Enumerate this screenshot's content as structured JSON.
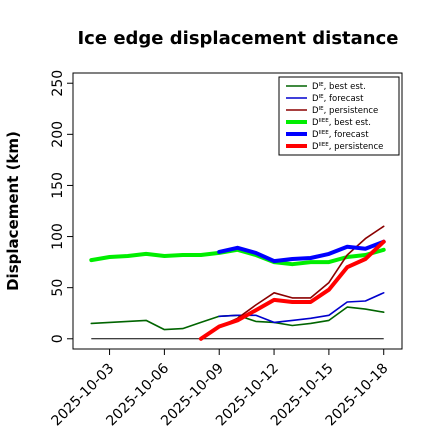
{
  "chart_data": {
    "type": "line",
    "title": "Ice edge displacement distance",
    "xlabel": "",
    "ylabel": "Displacement (km)",
    "xlim": [
      "2025-10-01",
      "2025-10-19"
    ],
    "ylim": [
      -10,
      260
    ],
    "yticks": [
      0,
      50,
      100,
      150,
      200,
      250
    ],
    "xticks": [
      {
        "date": "2025-10-03",
        "label": "2025-10-03",
        "color": "#000000"
      },
      {
        "date": "2025-10-06",
        "label": "2025-10-06",
        "color": "#000000"
      },
      {
        "date": "2025-10-09",
        "label": "2025-10-09",
        "color": "#228B22"
      },
      {
        "date": "2025-10-12",
        "label": "2025-10-12",
        "color": "#000000"
      },
      {
        "date": "2025-10-15",
        "label": "2025-10-15",
        "color": "#000000"
      },
      {
        "date": "2025-10-18",
        "label": "2025-10-18",
        "color": "#000000"
      }
    ],
    "reference_line": {
      "y": 0,
      "from": "2025-10-02",
      "to": "2025-10-18",
      "color": "#000000"
    },
    "legend": {
      "position": "top-right",
      "entries": [
        {
          "sup": "IE",
          "text": "best est.",
          "color": "#006400",
          "thick": false
        },
        {
          "sup": "IE",
          "text": "forecast",
          "color": "#0000CD",
          "thick": false
        },
        {
          "sup": "IE",
          "text": "persistence",
          "color": "#8B0000",
          "thick": false
        },
        {
          "sup": "IIEE",
          "text": "best est.",
          "color": "#00EE00",
          "thick": true
        },
        {
          "sup": "IIEE",
          "text": "forecast",
          "color": "#0000FF",
          "thick": true
        },
        {
          "sup": "IIEE",
          "text": "persistence",
          "color": "#FF0000",
          "thick": true
        }
      ]
    },
    "series": [
      {
        "color": "#00EE00",
        "thick": true,
        "x": [
          "2025-10-02",
          "2025-10-03",
          "2025-10-04",
          "2025-10-05",
          "2025-10-06",
          "2025-10-07",
          "2025-10-08",
          "2025-10-09",
          "2025-10-10",
          "2025-10-11",
          "2025-10-12",
          "2025-10-13",
          "2025-10-14",
          "2025-10-15",
          "2025-10-16",
          "2025-10-17",
          "2025-10-18"
        ],
        "y": [
          77,
          80,
          81,
          83,
          81,
          82,
          82,
          84,
          87,
          82,
          75,
          73,
          75,
          75,
          80,
          82,
          87
        ]
      },
      {
        "color": "#006400",
        "thick": false,
        "x": [
          "2025-10-02",
          "2025-10-03",
          "2025-10-04",
          "2025-10-05",
          "2025-10-06",
          "2025-10-07",
          "2025-10-08",
          "2025-10-09",
          "2025-10-10",
          "2025-10-11",
          "2025-10-12",
          "2025-10-13",
          "2025-10-14",
          "2025-10-15",
          "2025-10-16",
          "2025-10-17",
          "2025-10-18"
        ],
        "y": [
          15,
          16,
          17,
          18,
          9,
          10,
          16,
          22,
          23,
          17,
          16,
          13,
          15,
          18,
          31,
          29,
          26
        ]
      },
      {
        "color": "#0000CD",
        "thick": false,
        "x": [
          "2025-10-09",
          "2025-10-10",
          "2025-10-11",
          "2025-10-12",
          "2025-10-13",
          "2025-10-14",
          "2025-10-15",
          "2025-10-16",
          "2025-10-17",
          "2025-10-18"
        ],
        "y": [
          22,
          23,
          23,
          16,
          18,
          20,
          23,
          36,
          37,
          45
        ]
      },
      {
        "color": "#8B0000",
        "thick": false,
        "x": [
          "2025-10-08",
          "2025-10-09",
          "2025-10-10",
          "2025-10-11",
          "2025-10-12",
          "2025-10-13",
          "2025-10-14",
          "2025-10-15",
          "2025-10-16",
          "2025-10-17",
          "2025-10-18"
        ],
        "y": [
          0,
          12,
          20,
          33,
          45,
          40,
          40,
          55,
          82,
          98,
          110
        ]
      },
      {
        "color": "#0000FF",
        "thick": true,
        "x": [
          "2025-10-09",
          "2025-10-10",
          "2025-10-11",
          "2025-10-12",
          "2025-10-13",
          "2025-10-14",
          "2025-10-15",
          "2025-10-16",
          "2025-10-17",
          "2025-10-18"
        ],
        "y": [
          85,
          89,
          84,
          76,
          78,
          79,
          83,
          90,
          88,
          95
        ]
      },
      {
        "color": "#FF0000",
        "thick": true,
        "x": [
          "2025-10-08",
          "2025-10-09",
          "2025-10-10",
          "2025-10-11",
          "2025-10-12",
          "2025-10-13",
          "2025-10-14",
          "2025-10-15",
          "2025-10-16",
          "2025-10-17",
          "2025-10-18"
        ],
        "y": [
          0,
          12,
          18,
          28,
          38,
          36,
          36,
          48,
          70,
          78,
          95
        ]
      }
    ]
  }
}
